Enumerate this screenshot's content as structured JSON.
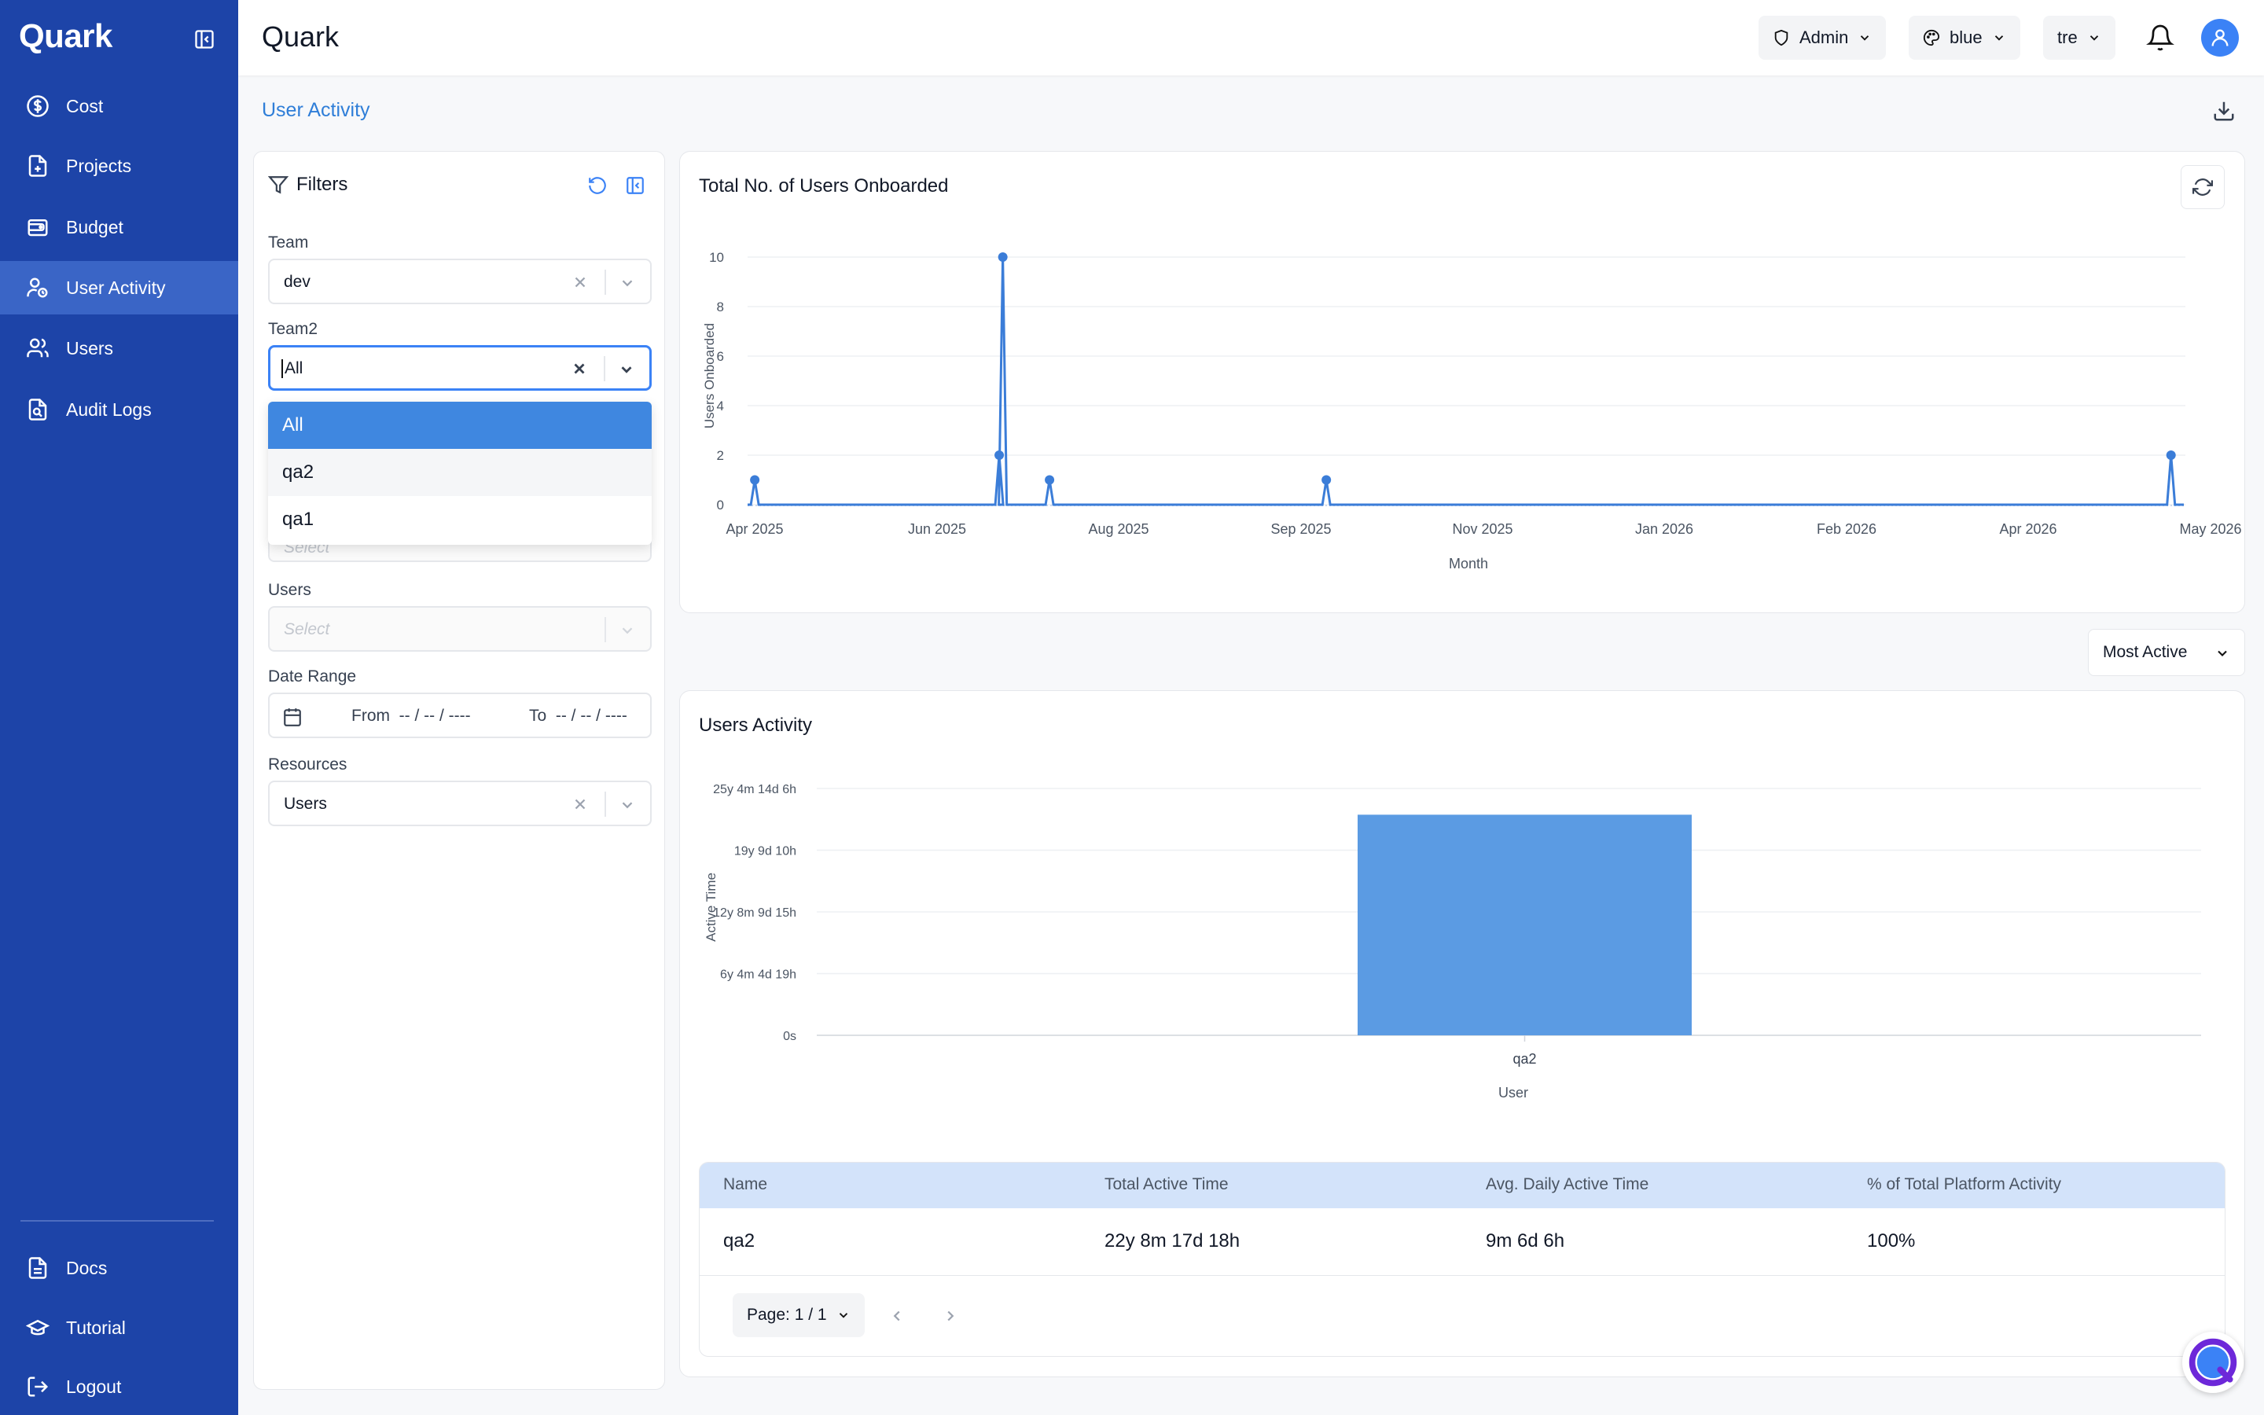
{
  "app": {
    "brand": "Quark",
    "header_title": "Quark"
  },
  "sidebar": {
    "items": [
      {
        "label": "Cost",
        "icon": "dollar-circle-icon"
      },
      {
        "label": "Projects",
        "icon": "file-plus-icon"
      },
      {
        "label": "Budget",
        "icon": "wallet-icon"
      },
      {
        "label": "User Activity",
        "icon": "user-clock-icon",
        "active": true
      },
      {
        "label": "Users",
        "icon": "users-icon"
      },
      {
        "label": "Audit Logs",
        "icon": "file-search-icon"
      }
    ],
    "bottom": [
      {
        "label": "Docs",
        "icon": "document-icon"
      },
      {
        "label": "Tutorial",
        "icon": "graduation-cap-icon"
      },
      {
        "label": "Logout",
        "icon": "logout-icon"
      }
    ]
  },
  "header": {
    "role": "Admin",
    "theme": "blue",
    "org": "tre"
  },
  "page": {
    "title": "User Activity"
  },
  "filters": {
    "title": "Filters",
    "team_label": "Team",
    "team_value": "dev",
    "team2_label": "Team2",
    "team2_value": "All",
    "team2_options": [
      "All",
      "qa2",
      "qa1"
    ],
    "hidden_placeholder": "Select",
    "users_label": "Users",
    "users_placeholder": "Select",
    "date_label": "Date Range",
    "from_label": "From",
    "from_value": "-- / -- / ----",
    "to_label": "To",
    "to_value": "-- / -- / ----",
    "resources_label": "Resources",
    "resources_value": "Users"
  },
  "onboard_chart": {
    "title": "Total No. of Users Onboarded",
    "ylabel": "Users Onboarded",
    "xlabel": "Month",
    "yticks": [
      "0",
      "2",
      "4",
      "6",
      "8",
      "10"
    ],
    "xticks": [
      "Apr 2025",
      "Jun 2025",
      "Aug 2025",
      "Sep 2025",
      "Nov 2025",
      "Jan 2026",
      "Feb 2026",
      "Apr 2026",
      "May 2026"
    ]
  },
  "sort_select": "Most Active",
  "activity_chart": {
    "title": "Users Activity",
    "ylabel": "Active Time",
    "xlabel": "User",
    "yticks": [
      "0s",
      "6y 4m 4d 19h",
      "12y 8m 9d 15h",
      "19y 9d 10h",
      "25y 4m 14d 6h"
    ]
  },
  "chart_data": [
    {
      "type": "line",
      "title": "Total No. of Users Onboarded",
      "xlabel": "Month",
      "ylabel": "Users Onboarded",
      "ylim": [
        0,
        10
      ],
      "x": [
        "2025-04-02",
        "2025-06-09",
        "2025-06-10",
        "2025-06-23",
        "2025-09-08",
        "2026-05-01"
      ],
      "values": [
        1,
        2,
        10,
        1,
        1,
        2
      ],
      "color": "#3b7dd8"
    },
    {
      "type": "bar",
      "title": "Users Activity",
      "xlabel": "User",
      "ylabel": "Active Time",
      "categories": [
        "qa2"
      ],
      "values_label": [
        "22y 8m 17d 18h"
      ],
      "values_years": [
        22.7
      ],
      "ylim_years": [
        0,
        25.4
      ],
      "color": "#5b9be3"
    }
  ],
  "table": {
    "headers": [
      "Name",
      "Total Active Time",
      "Avg. Daily Active Time",
      "% of Total Platform Activity"
    ],
    "rows": [
      [
        "qa2",
        "22y 8m 17d 18h",
        "9m 6d 6h",
        "100%"
      ]
    ],
    "page": "Page: 1 / 1"
  }
}
